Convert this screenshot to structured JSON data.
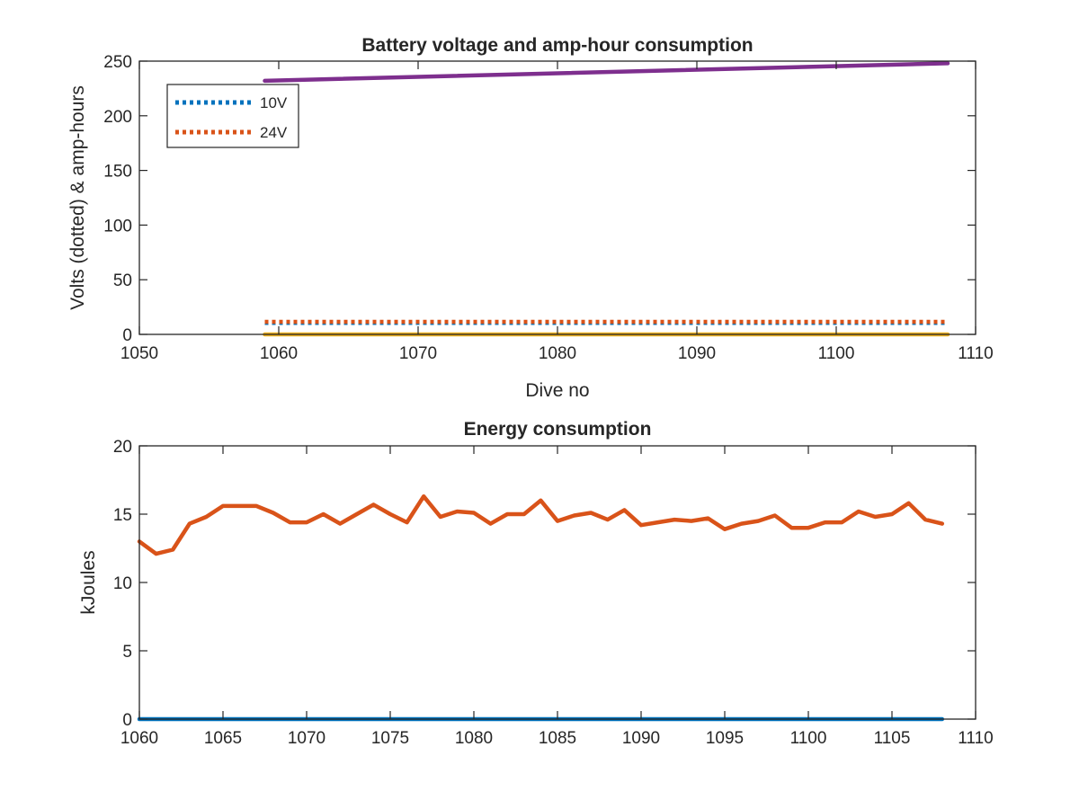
{
  "chart_data": [
    {
      "type": "line",
      "title": "Battery voltage and amp-hour consumption",
      "xlabel": "Dive no",
      "ylabel": "Volts (dotted) & amp-hours",
      "xlim": [
        1050,
        1110
      ],
      "ylim": [
        0,
        250
      ],
      "xticks": [
        1050,
        1060,
        1070,
        1080,
        1090,
        1100,
        1110
      ],
      "yticks": [
        0,
        50,
        100,
        150,
        200,
        250
      ],
      "grid": false,
      "legend": {
        "location": "top-left",
        "entries": [
          "10V",
          "24V"
        ]
      },
      "series": [
        {
          "name": "10V",
          "style": "dotted",
          "color": "#0072bd",
          "x": [
            1059,
            1108
          ],
          "y": [
            10.5,
            10.5
          ]
        },
        {
          "name": "24V",
          "style": "dotted",
          "color": "#d95319",
          "x": [
            1059,
            1108
          ],
          "y": [
            11.5,
            11.5
          ]
        },
        {
          "style": "solid",
          "color": "#edb120",
          "x": [
            1059,
            1108
          ],
          "y": [
            0,
            0
          ]
        },
        {
          "style": "solid",
          "color": "#7e2f8e",
          "x": [
            1059,
            1108
          ],
          "y": [
            232,
            248
          ]
        }
      ]
    },
    {
      "type": "line",
      "title": "Energy consumption",
      "xlabel": "",
      "ylabel": "kJoules",
      "xlim": [
        1060,
        1110
      ],
      "ylim": [
        0,
        20
      ],
      "xticks": [
        1060,
        1065,
        1070,
        1075,
        1080,
        1085,
        1090,
        1095,
        1100,
        1105,
        1110
      ],
      "yticks": [
        0,
        5,
        10,
        15,
        20
      ],
      "grid": false,
      "series": [
        {
          "style": "solid",
          "color": "#0072bd",
          "x": [
            1060,
            1108
          ],
          "y": [
            0,
            0
          ]
        },
        {
          "style": "solid",
          "color": "#d95319",
          "x": [
            1060,
            1061,
            1062,
            1063,
            1064,
            1065,
            1066,
            1067,
            1068,
            1069,
            1070,
            1071,
            1072,
            1073,
            1074,
            1075,
            1076,
            1077,
            1078,
            1079,
            1080,
            1081,
            1082,
            1083,
            1084,
            1085,
            1086,
            1087,
            1088,
            1089,
            1090,
            1091,
            1092,
            1093,
            1094,
            1095,
            1096,
            1097,
            1098,
            1099,
            1100,
            1101,
            1102,
            1103,
            1104,
            1105,
            1106,
            1107,
            1108
          ],
          "y": [
            13.0,
            12.1,
            12.4,
            14.3,
            14.8,
            15.6,
            15.6,
            15.6,
            15.1,
            14.4,
            14.4,
            15.0,
            14.3,
            15.0,
            15.7,
            15.0,
            14.4,
            16.3,
            14.8,
            15.2,
            15.1,
            14.3,
            15.0,
            15.0,
            16.0,
            14.5,
            14.9,
            15.1,
            14.6,
            15.3,
            14.2,
            14.4,
            14.6,
            14.5,
            14.7,
            13.9,
            14.3,
            14.5,
            14.9,
            14.0,
            14.0,
            14.4,
            14.4,
            15.2,
            14.8,
            15.0,
            15.8,
            14.6,
            14.3
          ]
        }
      ]
    }
  ]
}
